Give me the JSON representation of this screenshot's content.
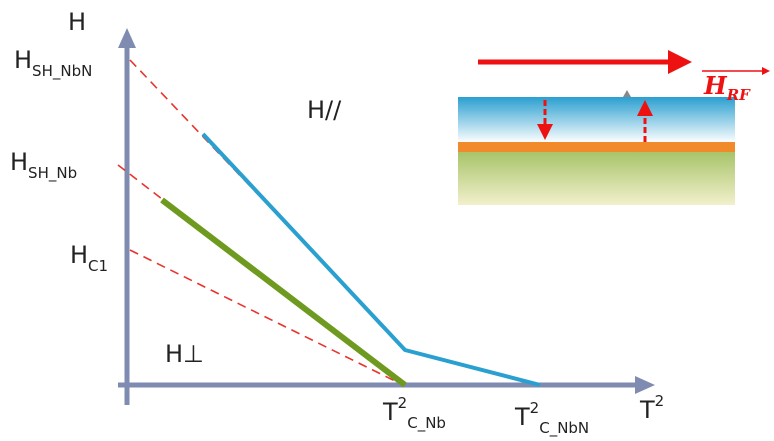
{
  "axes": {
    "y_label": "H",
    "x_label": {
      "base": "T",
      "sup": "2"
    }
  },
  "y_labels": [
    {
      "base": "H",
      "sub": "SH_NbN"
    },
    {
      "base": "H",
      "sub": "SH_Nb"
    },
    {
      "base": "H",
      "sub": "C1"
    }
  ],
  "x_labels": [
    {
      "base": "T",
      "sup": "2",
      "sub": "C_Nb"
    },
    {
      "base": "T",
      "sup": "2",
      "sub": "C_NbN"
    }
  ],
  "regions": [
    "H//",
    "H⊥"
  ],
  "inset": {
    "field": {
      "base": "H",
      "sub": "RF"
    }
  }
}
